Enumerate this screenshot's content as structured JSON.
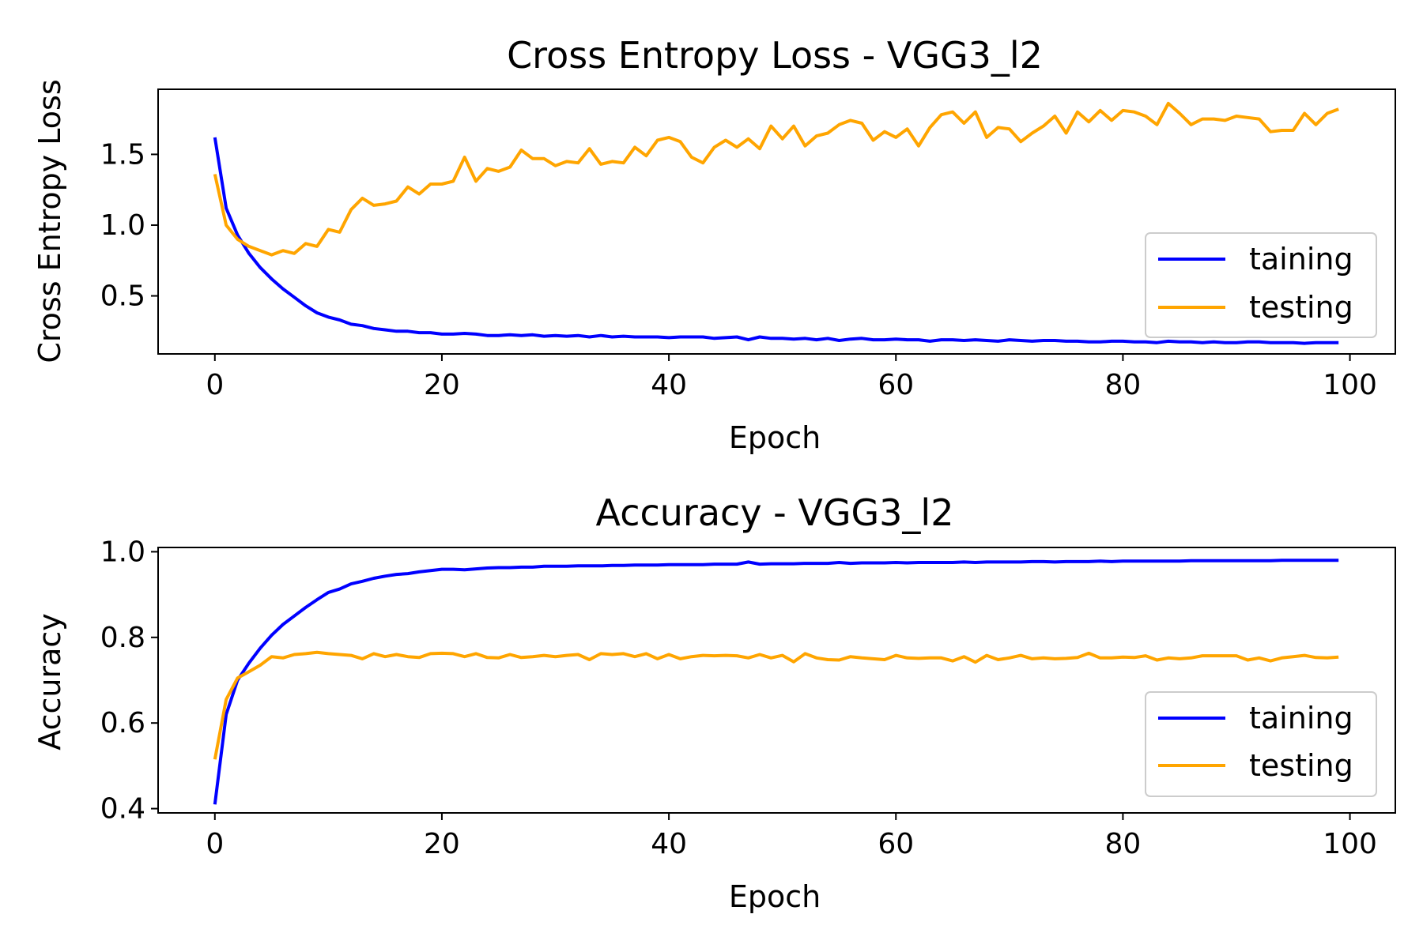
{
  "chart_data": [
    {
      "type": "line",
      "title": "Cross Entropy Loss - VGG3_l2",
      "xlabel": "Epoch",
      "ylabel": "Cross Entropy Loss",
      "xlim": [
        -5,
        104
      ],
      "ylim": [
        0.09,
        1.96
      ],
      "x_ticks": [
        0,
        20,
        40,
        60,
        80,
        100
      ],
      "y_ticks": [
        0.5,
        1.0,
        1.5
      ],
      "x_tick_labels": [
        "0",
        "20",
        "40",
        "60",
        "80",
        "100"
      ],
      "y_tick_labels": [
        "0.5",
        "1.0",
        "1.5"
      ],
      "grid": false,
      "legend_position": "lower-right",
      "x_start": 0,
      "x_step": 1,
      "series": [
        {
          "name": "taining",
          "color": "#0000ff",
          "values": [
            1.62,
            1.12,
            0.93,
            0.8,
            0.7,
            0.62,
            0.55,
            0.49,
            0.43,
            0.38,
            0.35,
            0.33,
            0.3,
            0.29,
            0.27,
            0.26,
            0.25,
            0.25,
            0.24,
            0.24,
            0.23,
            0.23,
            0.235,
            0.23,
            0.22,
            0.22,
            0.225,
            0.22,
            0.225,
            0.215,
            0.22,
            0.215,
            0.22,
            0.21,
            0.22,
            0.21,
            0.215,
            0.21,
            0.21,
            0.21,
            0.205,
            0.21,
            0.21,
            0.21,
            0.2,
            0.205,
            0.21,
            0.19,
            0.21,
            0.2,
            0.2,
            0.195,
            0.2,
            0.19,
            0.2,
            0.185,
            0.195,
            0.2,
            0.19,
            0.19,
            0.195,
            0.19,
            0.19,
            0.18,
            0.19,
            0.19,
            0.185,
            0.19,
            0.185,
            0.18,
            0.19,
            0.185,
            0.18,
            0.185,
            0.185,
            0.18,
            0.18,
            0.175,
            0.175,
            0.18,
            0.18,
            0.175,
            0.175,
            0.17,
            0.18,
            0.175,
            0.175,
            0.17,
            0.175,
            0.17,
            0.17,
            0.175,
            0.175,
            0.17,
            0.17,
            0.17,
            0.165,
            0.17,
            0.17,
            0.17
          ]
        },
        {
          "name": "testing",
          "color": "#ffa500",
          "values": [
            1.36,
            1.0,
            0.9,
            0.85,
            0.82,
            0.79,
            0.82,
            0.8,
            0.87,
            0.85,
            0.97,
            0.95,
            1.11,
            1.19,
            1.14,
            1.15,
            1.17,
            1.27,
            1.22,
            1.29,
            1.29,
            1.31,
            1.48,
            1.31,
            1.4,
            1.38,
            1.41,
            1.53,
            1.47,
            1.47,
            1.42,
            1.45,
            1.44,
            1.54,
            1.43,
            1.45,
            1.44,
            1.55,
            1.49,
            1.6,
            1.62,
            1.59,
            1.48,
            1.44,
            1.55,
            1.6,
            1.55,
            1.61,
            1.54,
            1.7,
            1.61,
            1.7,
            1.56,
            1.63,
            1.65,
            1.71,
            1.74,
            1.72,
            1.6,
            1.66,
            1.62,
            1.68,
            1.56,
            1.69,
            1.78,
            1.8,
            1.72,
            1.8,
            1.62,
            1.69,
            1.68,
            1.59,
            1.65,
            1.7,
            1.77,
            1.65,
            1.8,
            1.73,
            1.81,
            1.74,
            1.81,
            1.8,
            1.77,
            1.71,
            1.86,
            1.79,
            1.71,
            1.75,
            1.75,
            1.74,
            1.77,
            1.76,
            1.75,
            1.66,
            1.67,
            1.67,
            1.79,
            1.71,
            1.79,
            1.82
          ]
        }
      ]
    },
    {
      "type": "line",
      "title": "Accuracy - VGG3_l2",
      "xlabel": "Epoch",
      "ylabel": "Accuracy",
      "xlim": [
        -5,
        104
      ],
      "ylim": [
        0.39,
        1.01
      ],
      "x_ticks": [
        0,
        20,
        40,
        60,
        80,
        100
      ],
      "y_ticks": [
        0.4,
        0.6,
        0.8,
        1.0
      ],
      "x_tick_labels": [
        "0",
        "20",
        "40",
        "60",
        "80",
        "100"
      ],
      "y_tick_labels": [
        "0.4",
        "0.6",
        "0.8",
        "1.0"
      ],
      "grid": false,
      "legend_position": "lower-right",
      "x_start": 0,
      "x_step": 1,
      "series": [
        {
          "name": "taining",
          "color": "#0000ff",
          "values": [
            0.41,
            0.62,
            0.7,
            0.74,
            0.775,
            0.805,
            0.83,
            0.85,
            0.87,
            0.888,
            0.905,
            0.913,
            0.925,
            0.931,
            0.938,
            0.943,
            0.947,
            0.949,
            0.953,
            0.956,
            0.959,
            0.959,
            0.958,
            0.96,
            0.962,
            0.963,
            0.963,
            0.964,
            0.964,
            0.966,
            0.966,
            0.966,
            0.967,
            0.967,
            0.967,
            0.968,
            0.968,
            0.969,
            0.969,
            0.969,
            0.97,
            0.97,
            0.97,
            0.97,
            0.971,
            0.971,
            0.971,
            0.976,
            0.971,
            0.972,
            0.972,
            0.972,
            0.973,
            0.973,
            0.973,
            0.975,
            0.973,
            0.974,
            0.974,
            0.974,
            0.975,
            0.974,
            0.975,
            0.975,
            0.975,
            0.975,
            0.976,
            0.975,
            0.976,
            0.976,
            0.976,
            0.976,
            0.977,
            0.977,
            0.976,
            0.977,
            0.977,
            0.977,
            0.978,
            0.977,
            0.978,
            0.978,
            0.978,
            0.978,
            0.978,
            0.978,
            0.979,
            0.979,
            0.979,
            0.979,
            0.979,
            0.979,
            0.979,
            0.979,
            0.98,
            0.98,
            0.98,
            0.98,
            0.98,
            0.98
          ]
        },
        {
          "name": "testing",
          "color": "#ffa500",
          "values": [
            0.515,
            0.655,
            0.705,
            0.72,
            0.735,
            0.755,
            0.752,
            0.76,
            0.762,
            0.765,
            0.762,
            0.76,
            0.758,
            0.75,
            0.762,
            0.755,
            0.76,
            0.755,
            0.753,
            0.762,
            0.763,
            0.762,
            0.755,
            0.762,
            0.753,
            0.752,
            0.76,
            0.753,
            0.755,
            0.758,
            0.755,
            0.758,
            0.76,
            0.748,
            0.762,
            0.76,
            0.762,
            0.755,
            0.762,
            0.75,
            0.76,
            0.75,
            0.755,
            0.758,
            0.757,
            0.758,
            0.757,
            0.752,
            0.76,
            0.752,
            0.758,
            0.743,
            0.762,
            0.752,
            0.748,
            0.747,
            0.755,
            0.752,
            0.75,
            0.748,
            0.758,
            0.752,
            0.751,
            0.752,
            0.752,
            0.745,
            0.755,
            0.742,
            0.758,
            0.748,
            0.752,
            0.758,
            0.75,
            0.752,
            0.75,
            0.751,
            0.753,
            0.763,
            0.752,
            0.752,
            0.754,
            0.753,
            0.757,
            0.747,
            0.752,
            0.75,
            0.752,
            0.757,
            0.757,
            0.757,
            0.757,
            0.747,
            0.752,
            0.745,
            0.752,
            0.755,
            0.758,
            0.753,
            0.752,
            0.754
          ]
        }
      ]
    }
  ]
}
